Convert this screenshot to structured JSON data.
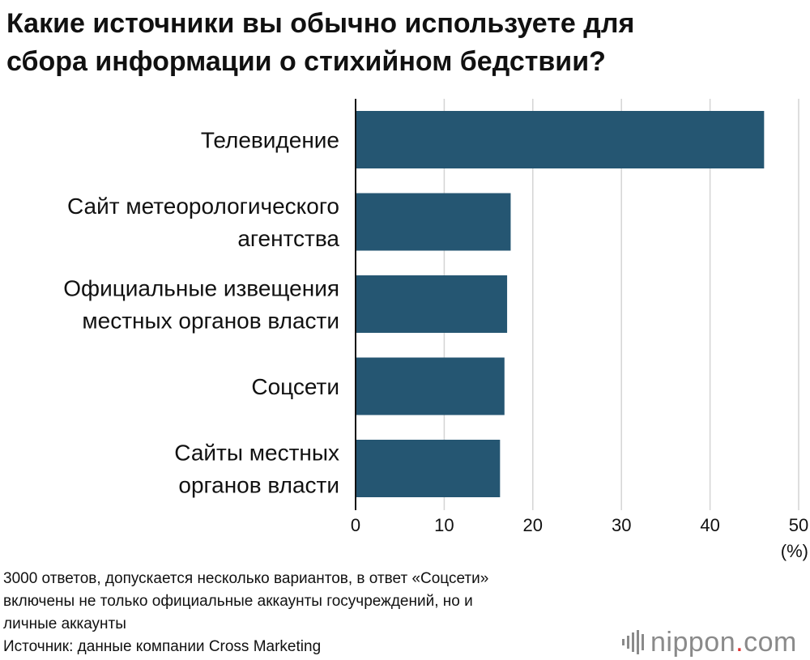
{
  "title_lines": [
    "Какие источники вы обычно используете для",
    "сбора информации о стихийном бедствии?"
  ],
  "chart_data": {
    "type": "bar",
    "orientation": "horizontal",
    "title": "Какие источники вы обычно используете для сбора информации о стихийном бедствии?",
    "categories": [
      [
        "Телевидение"
      ],
      [
        "Сайт метеорологического",
        "агентства"
      ],
      [
        "Официальные извещения",
        "местных органов власти"
      ],
      [
        "Соцсети"
      ],
      [
        "Сайты местных",
        "органов власти"
      ]
    ],
    "values": [
      46.1,
      17.5,
      17.1,
      16.8,
      16.3
    ],
    "xlim": [
      0,
      50
    ],
    "xticks": [
      0,
      10,
      20,
      30,
      40,
      50
    ],
    "xunit": "(%)",
    "grid": true,
    "bar_color": "#255672"
  },
  "footnote_lines": [
    "3000 ответов, допускается несколько вариантов, в ответ «Соцсети»",
    "включены не только официальные аккаунты госучреждений, но и",
    "личные аккаунты",
    "Источник: данные компании Cross Marketing"
  ],
  "logo": {
    "text": "nippon",
    "dot": ".",
    "suffix": "com",
    "icon": "sound-bars-icon",
    "color": "#8a8a8a",
    "accent": "#e03030"
  }
}
